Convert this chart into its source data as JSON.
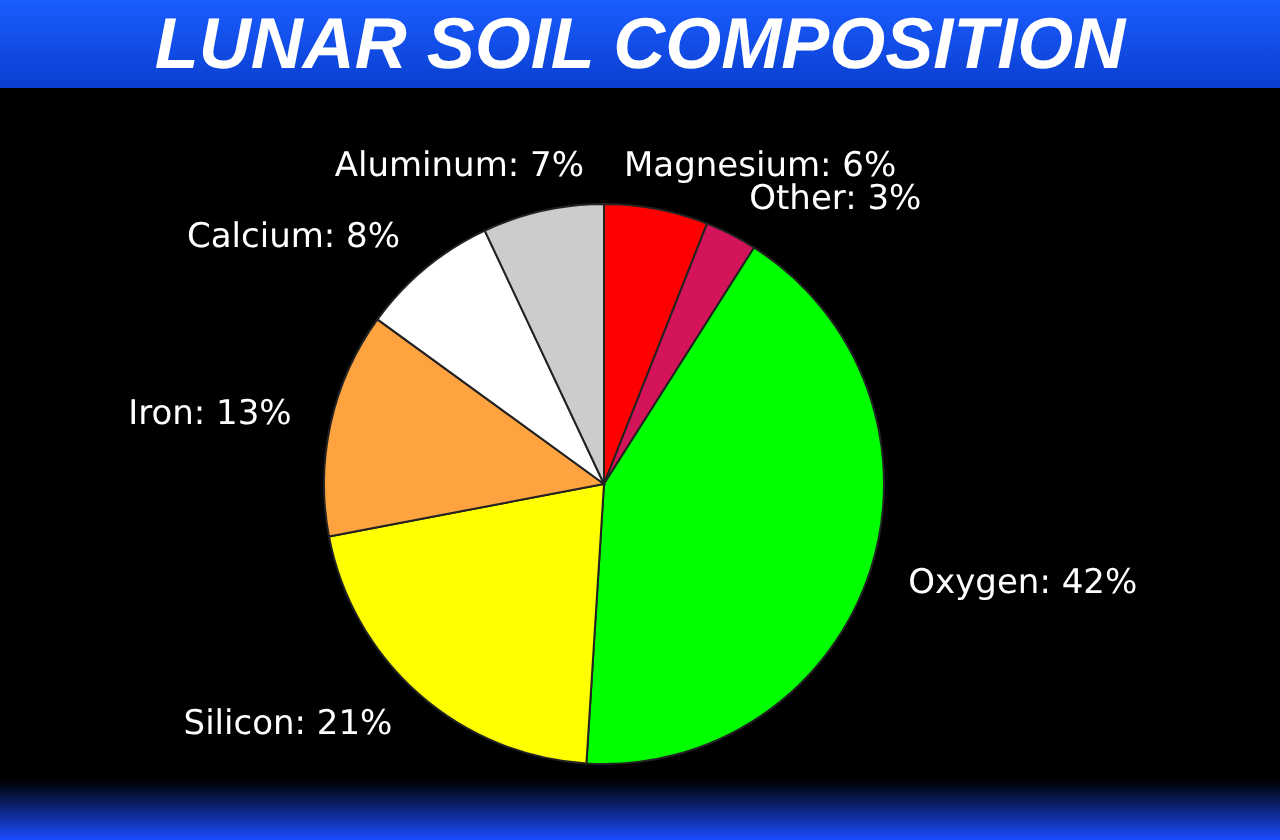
{
  "chart_data": {
    "type": "pie",
    "title": "LUNAR SOIL COMPOSITION",
    "categories": [
      "Magnesium",
      "Other",
      "Oxygen",
      "Silicon",
      "Iron",
      "Calcium",
      "Aluminum"
    ],
    "values": [
      6,
      3,
      42,
      21,
      13,
      8,
      7
    ],
    "value_labels": [
      "6%",
      "3%",
      "42%",
      "21%",
      "13%",
      "8%",
      "7%"
    ],
    "colors": [
      "#ff0000",
      "#d4145a",
      "#00ff00",
      "#ffff00",
      "#ffa340",
      "#ffffff",
      "#cccccc"
    ],
    "legend": false
  }
}
